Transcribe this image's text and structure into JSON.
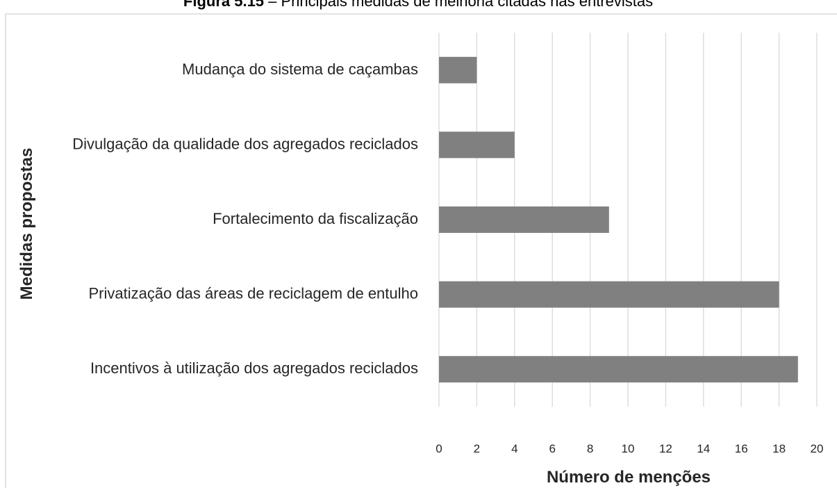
{
  "chart_data": {
    "type": "barh",
    "figure_label": "Figura 5.15",
    "title": " – Principais medidas de melhoria citadas nas entrevistas",
    "categories": [
      "Mudança do sistema de caçambas",
      "Divulgação da qualidade dos agregados reciclados",
      "Fortalecimento da fiscalização",
      "Privatização das áreas de reciclagem de entulho",
      "Incentivos à utilização dos agregados reciclados"
    ],
    "values": [
      2,
      4,
      9,
      18,
      19
    ],
    "color": "#808080",
    "xlim": [
      0,
      20
    ],
    "xticks": [
      0,
      2,
      4,
      6,
      8,
      10,
      12,
      14,
      16,
      18,
      20
    ],
    "xlabel": "Número de menções",
    "ylabel": "Medidas propostas",
    "grid": true
  }
}
